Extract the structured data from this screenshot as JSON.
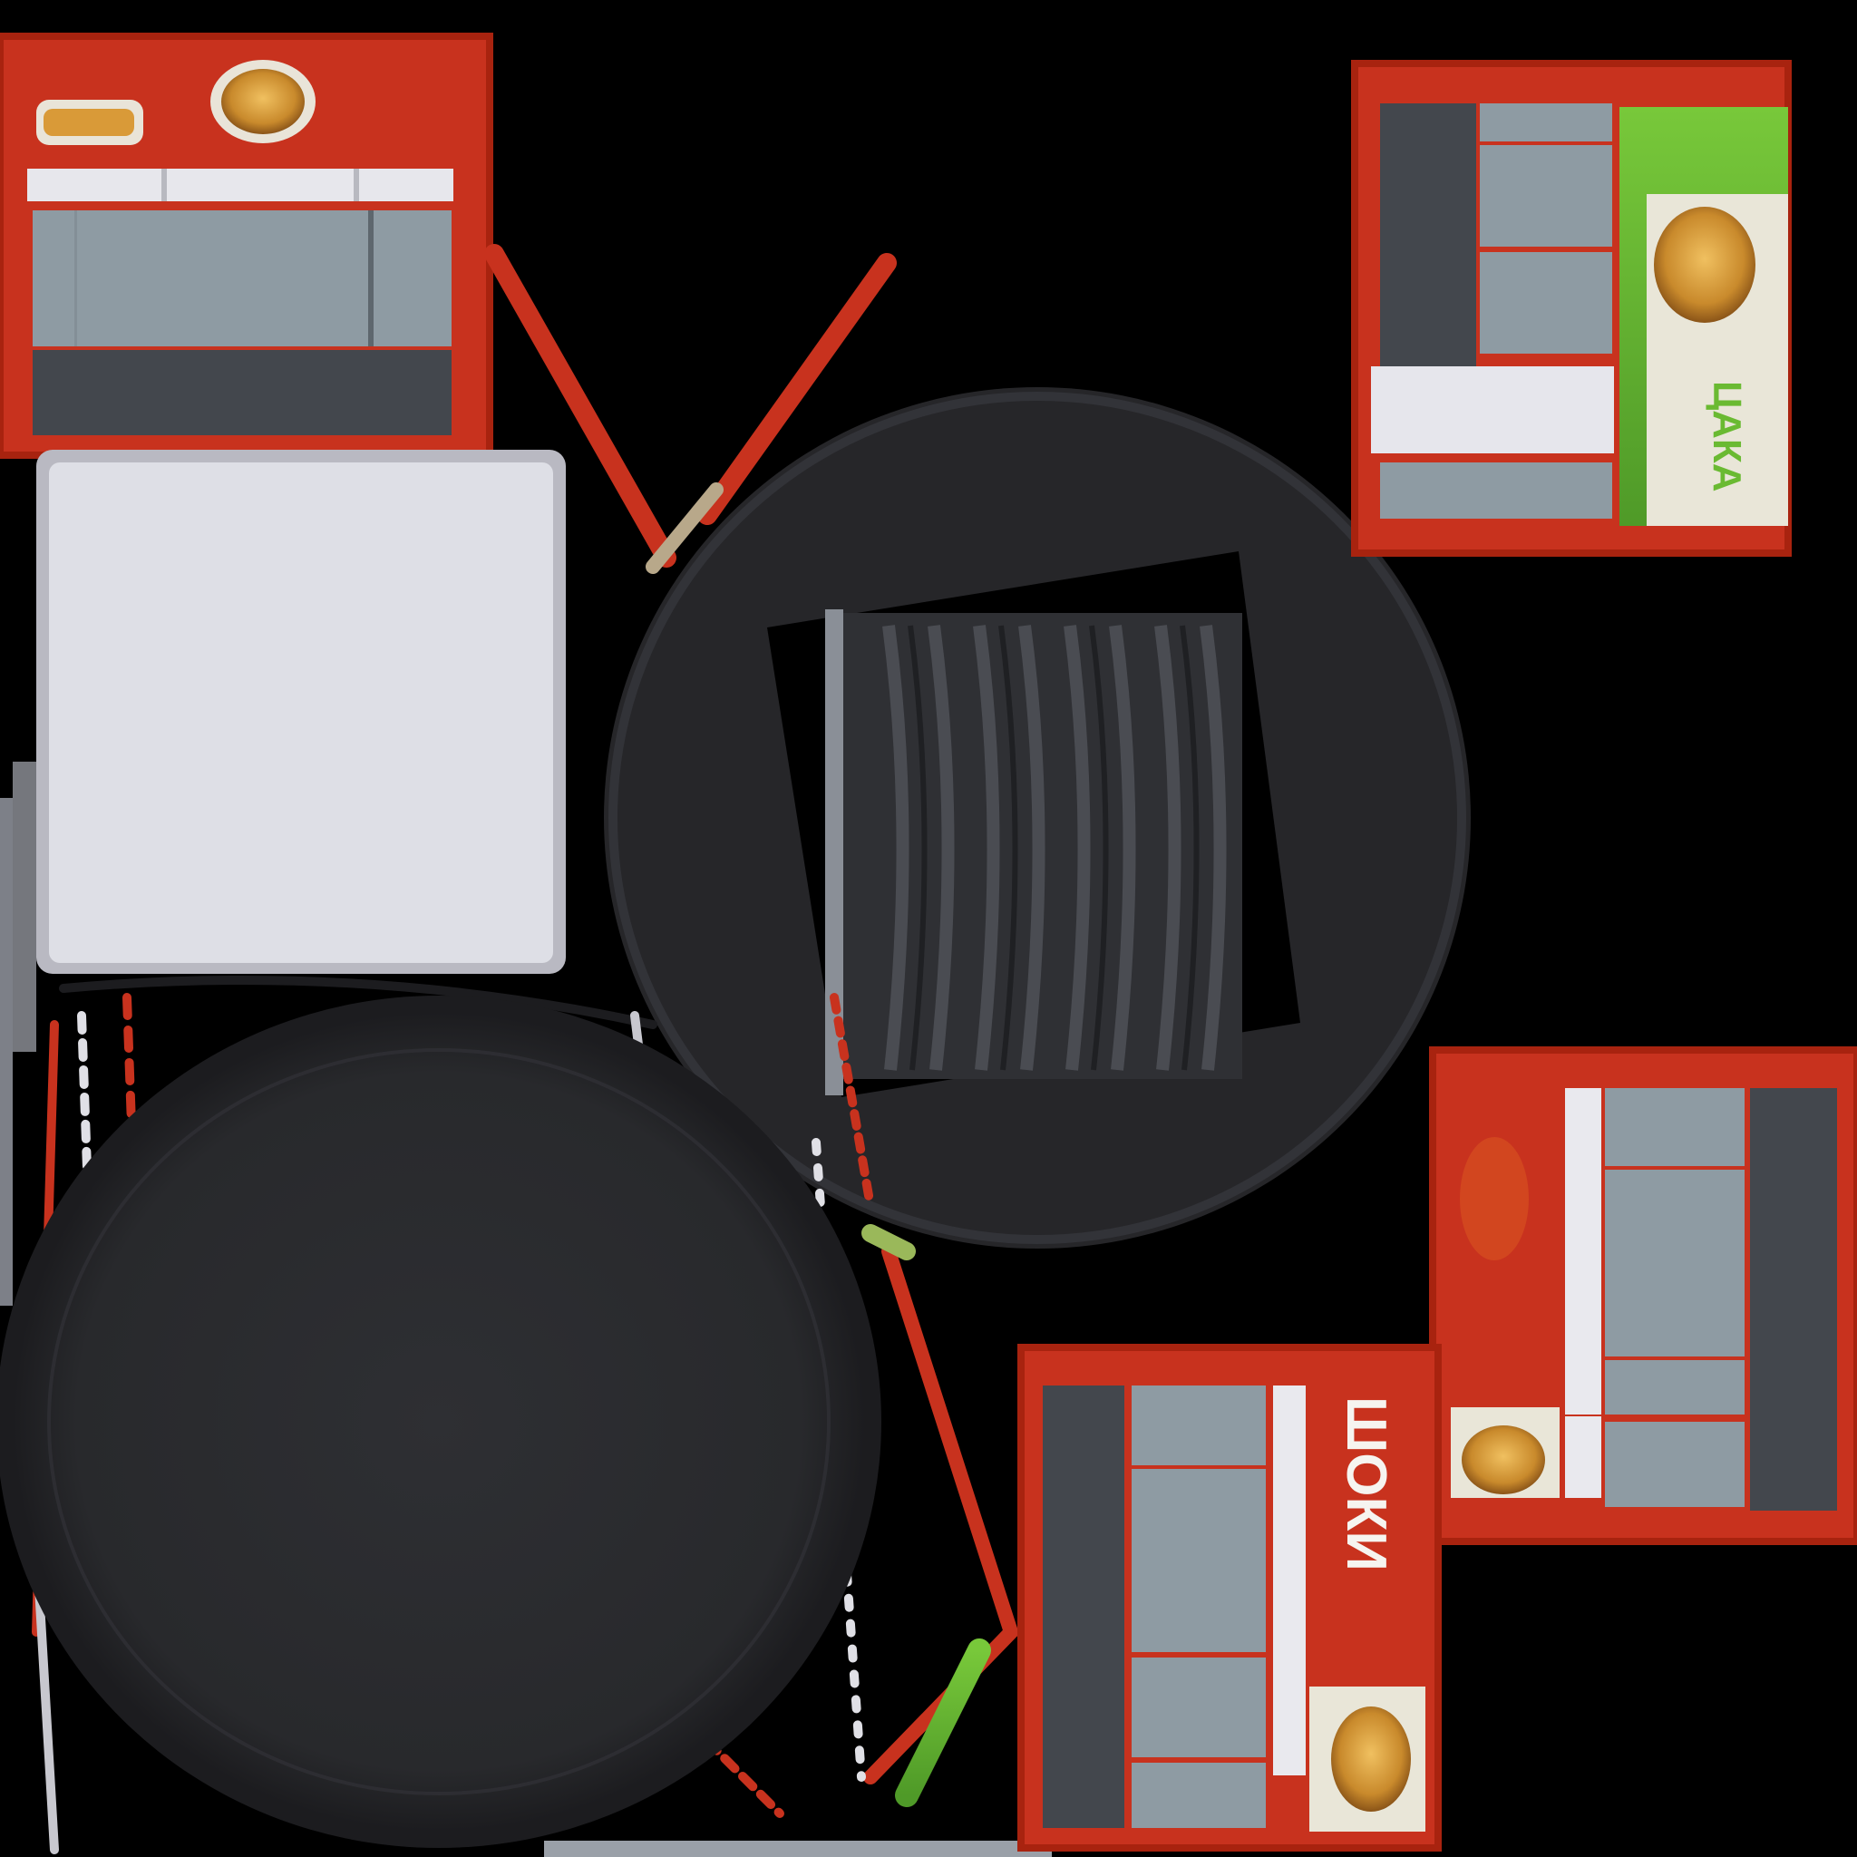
{
  "texture": {
    "signs": {
      "lower_right_panel_text": "ШОКИ",
      "upper_right_panel_text": "ЦАКА"
    },
    "colors": {
      "background": "#000000",
      "brand_red": "#c8321e",
      "panel_blue_gray": "#8e9ba3",
      "panel_dark_gray": "#43474d",
      "white_panel": "#dedfe6",
      "tire_black": "#262629",
      "accent_green": "#6aba32",
      "food_orange": "#d99a38"
    }
  }
}
